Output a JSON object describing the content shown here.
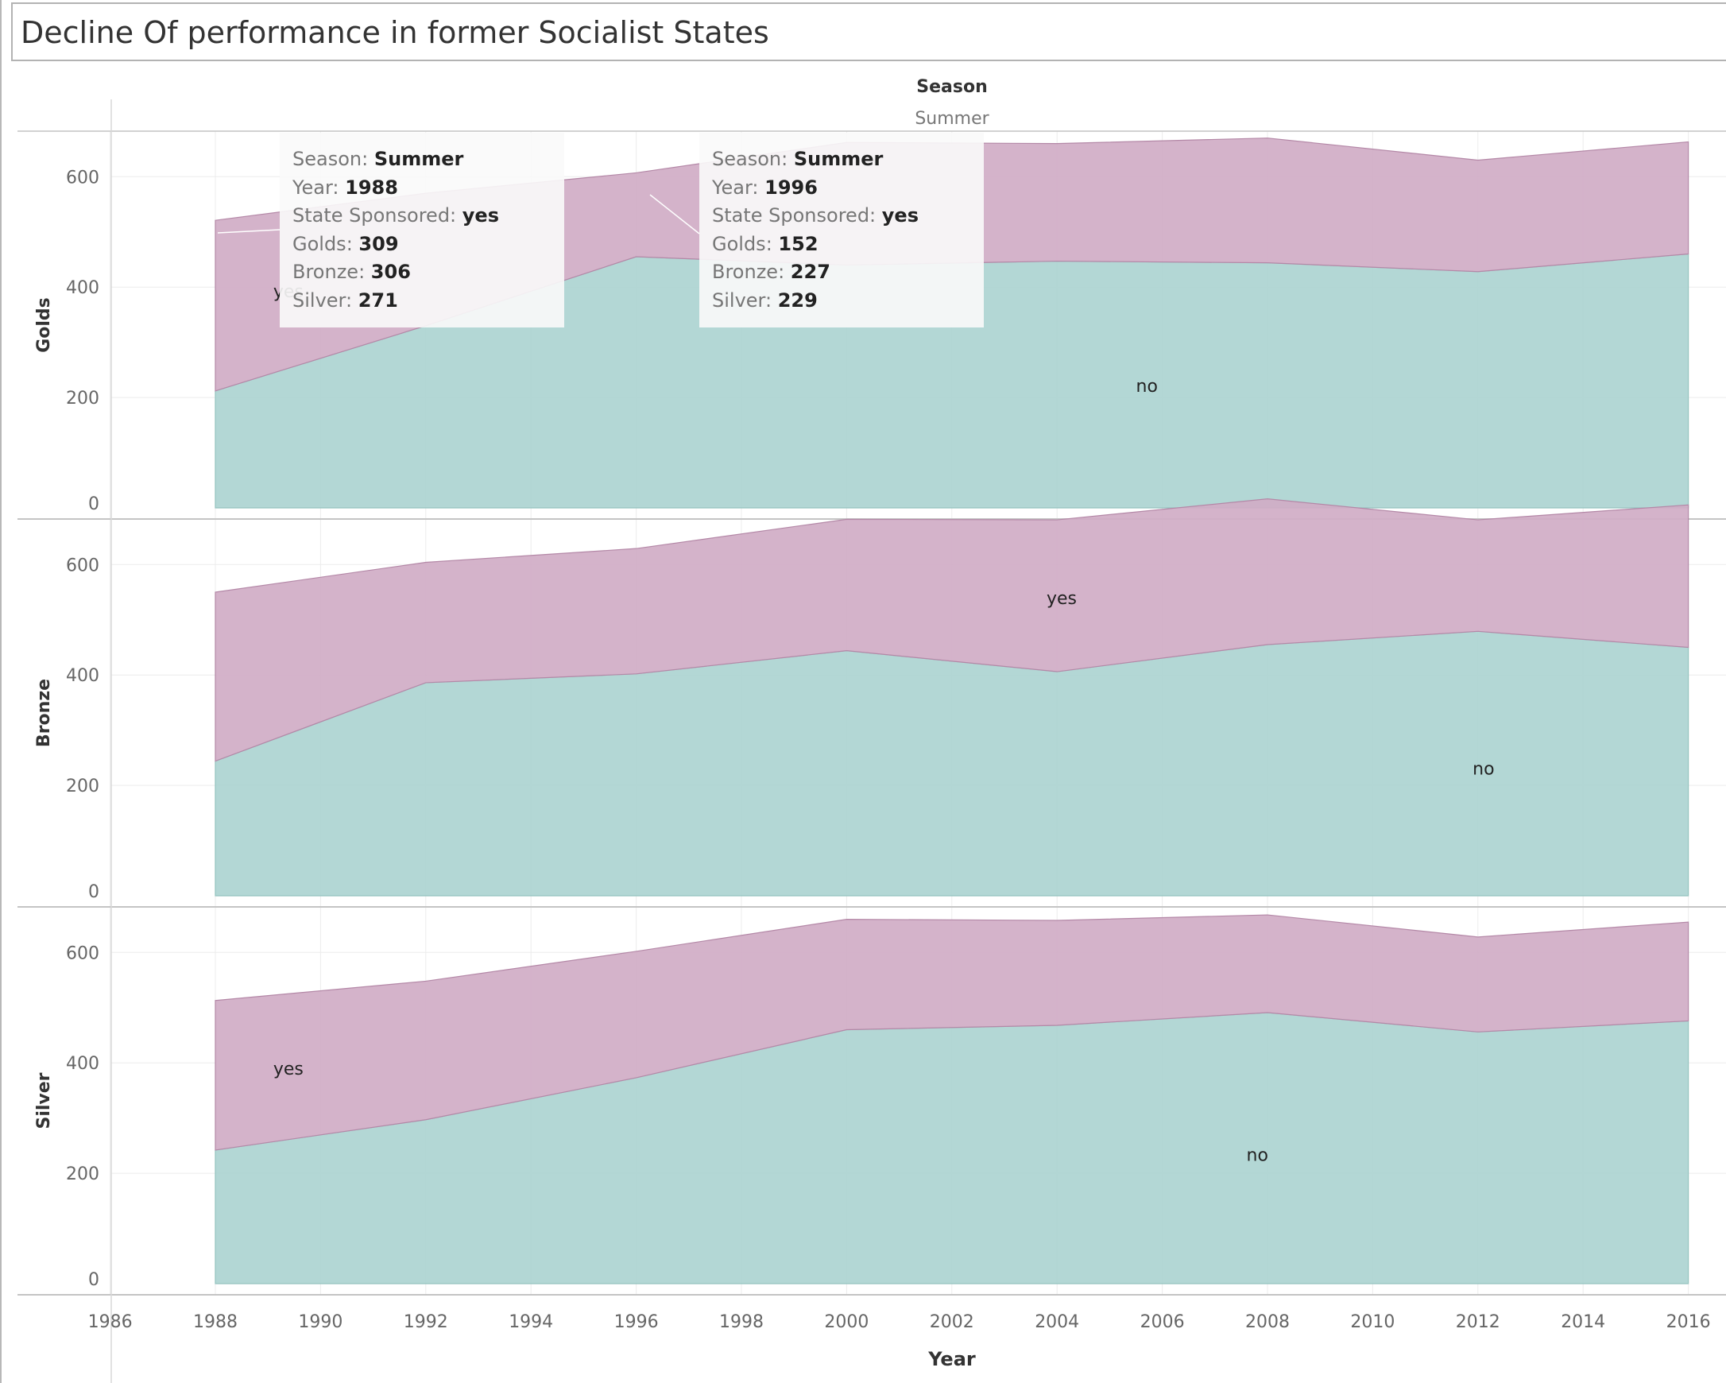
{
  "page": {
    "title": "Decline Of performance in former Socialist States"
  },
  "colors": {
    "yes": "#d0adc5",
    "yes_stroke": "#b488a7",
    "no": "#acd4d1",
    "no_stroke": "#94c3bf",
    "grid": "#ececec",
    "axis": "#c4c4c4"
  },
  "chart_data": {
    "type": "area",
    "stacked": true,
    "column_header": {
      "field": "Season",
      "value": "Summer"
    },
    "xlabel": "Year",
    "x_ticks": [
      "1986",
      "1988",
      "1990",
      "1992",
      "1994",
      "1996",
      "1998",
      "2000",
      "2002",
      "2004",
      "2006",
      "2008",
      "2010",
      "2012",
      "2014",
      "2016"
    ],
    "xlim": [
      1986,
      2016
    ],
    "ylim": [
      0,
      700
    ],
    "y_ticks": [
      "0",
      "200",
      "400",
      "600"
    ],
    "grid": true,
    "x": [
      1988,
      1992,
      1996,
      2000,
      2004,
      2008,
      2012,
      2016
    ],
    "panels": [
      {
        "ylabel": "Golds",
        "series": [
          {
            "name": "no",
            "values": [
              212,
              330,
              455,
              440,
              447,
              444,
              428,
              460
            ],
            "label_x": 2005.5,
            "label_y": 222
          },
          {
            "name": "yes",
            "values": [
              309,
              240,
              152,
              222,
              213,
              226,
              202,
              203
            ],
            "label_x": 1989.1,
            "label_y": 393
          }
        ]
      },
      {
        "ylabel": "Bronze",
        "series": [
          {
            "name": "no",
            "values": [
              244,
              386,
              402,
              444,
              406,
              455,
              479,
              450
            ],
            "label_x": 2011.9,
            "label_y": 231
          },
          {
            "name": "yes",
            "values": [
              306,
              218,
              227,
              238,
              275,
              264,
              202,
              258
            ],
            "label_x": 2003.8,
            "label_y": 540
          }
        ]
      },
      {
        "ylabel": "Silver",
        "series": [
          {
            "name": "no",
            "values": [
              242,
              297,
              373,
              460,
              468,
              491,
              456,
              476
            ],
            "label_x": 2007.6,
            "label_y": 234
          },
          {
            "name": "yes",
            "values": [
              271,
              251,
              229,
              200,
              190,
              177,
              172,
              179
            ],
            "label_x": 1989.1,
            "label_y": 390
          }
        ]
      }
    ],
    "tooltips": [
      {
        "rows": [
          {
            "key": "Season:",
            "value": "Summer"
          },
          {
            "key": "Year:",
            "value": "1988"
          },
          {
            "key": "State Sponsored:",
            "value": "yes"
          },
          {
            "key": "Golds:",
            "value": "309"
          },
          {
            "key": "Bronze:",
            "value": "306"
          },
          {
            "key": "Silver:",
            "value": "271"
          }
        ]
      },
      {
        "rows": [
          {
            "key": "Season:",
            "value": "Summer"
          },
          {
            "key": "Year:",
            "value": "1996"
          },
          {
            "key": "State Sponsored:",
            "value": "yes"
          },
          {
            "key": "Golds:",
            "value": "152"
          },
          {
            "key": "Bronze:",
            "value": "227"
          },
          {
            "key": "Silver:",
            "value": "229"
          }
        ]
      }
    ]
  }
}
